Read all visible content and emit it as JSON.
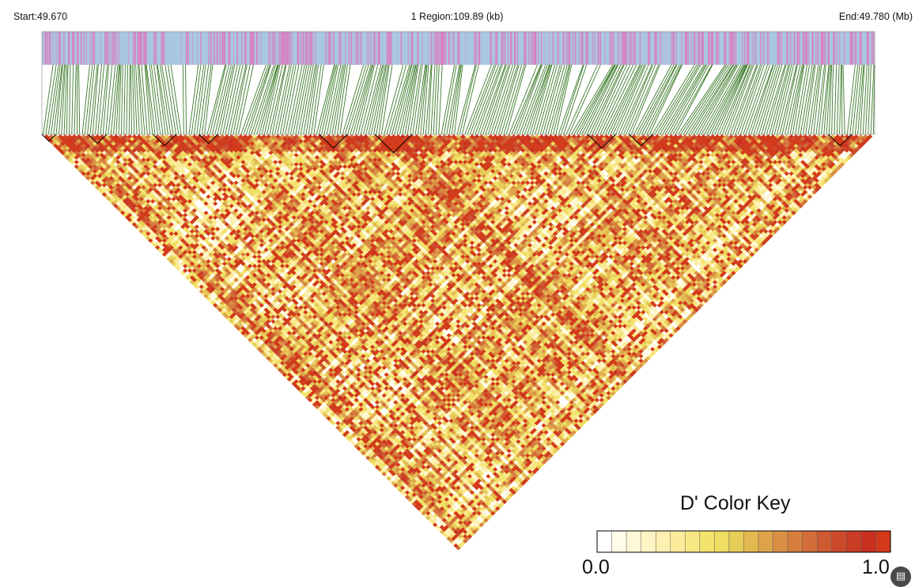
{
  "header": {
    "start": "Start:49.670",
    "region": "1 Region:109.89 (kb)",
    "end": "End:49.780 (Mb)"
  },
  "chart_data": {
    "type": "heatmap",
    "description": "LD heatmap (pairwise D') for SNPs in region",
    "region_start_mb": 49.67,
    "region_end_mb": 49.78,
    "region_length_kb": 109.89,
    "n_snps": 320,
    "colors": {
      "snp_track_background": "#a9c8e0",
      "snp_track_tick": "#d880c0",
      "connector_lines": "#3c7a28",
      "block_outline": "#000000"
    },
    "color_key": {
      "title": "D' Color Key",
      "min_label": "0.0",
      "max_label": "1.0",
      "min": 0.0,
      "max": 1.0,
      "steps": [
        "#ffffff",
        "#fffce8",
        "#fff8d6",
        "#fff4c4",
        "#fdf0b0",
        "#fbeb9a",
        "#f8e884",
        "#f4e46e",
        "#efde62",
        "#e6cc58",
        "#e2b850",
        "#dea34a",
        "#da9044",
        "#d67e3e",
        "#d26c38",
        "#ce5a32",
        "#cc4a2c",
        "#ca3c26",
        "#c83020",
        "#d23a1a"
      ]
    },
    "ld_blocks_visible": true
  }
}
